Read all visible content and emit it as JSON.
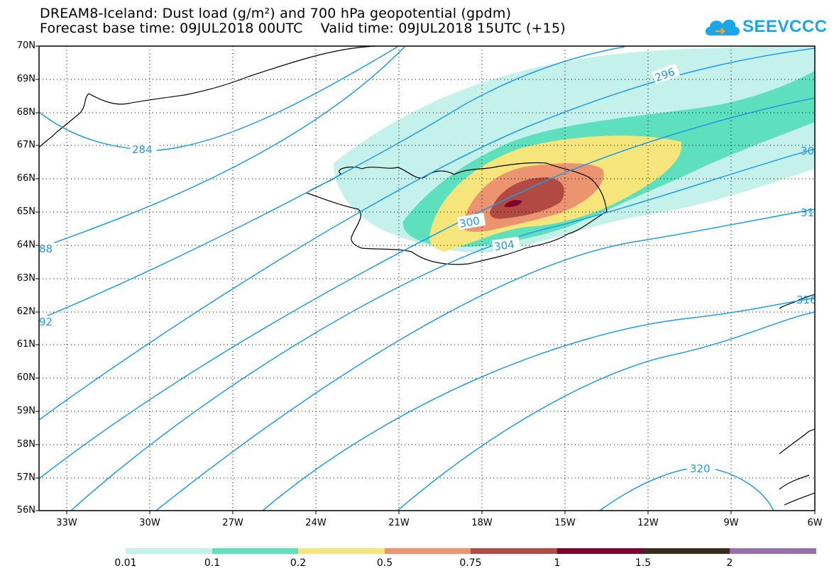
{
  "title": {
    "line1": "DREAM8-Iceland: Dust load (g/m²) and 700 hPa geopotential (gpdm)",
    "line2": "Forecast base time: 09JUL2018 00UTC    Valid time: 09JUL2018 15UTC (+15)"
  },
  "logo": {
    "text": "SEEVCCC",
    "icon": "cloud-logo-icon",
    "color": "#1aa6e8"
  },
  "map": {
    "lat_labels": [
      "70N",
      "69N",
      "68N",
      "67N",
      "66N",
      "65N",
      "64N",
      "63N",
      "62N",
      "61N",
      "60N",
      "59N",
      "58N",
      "57N",
      "56N"
    ],
    "lon_labels": [
      "33W",
      "30W",
      "27W",
      "24W",
      "21W",
      "18W",
      "15W",
      "12W",
      "9W",
      "6W"
    ],
    "contour_labels": [
      "284",
      "88",
      "92",
      "296",
      "300",
      "304",
      "30",
      "31",
      "316",
      "320"
    ],
    "contour_color": "#1e9be8",
    "grid": "dotted"
  },
  "colorbar": {
    "colors": [
      "#c4f2ea",
      "#5ee0bc",
      "#f6e57a",
      "#ec9470",
      "#b04a42",
      "#800030",
      "#3a2a1e",
      "#9a6ea8"
    ],
    "labels": [
      "0.01",
      "0.1",
      "0.2",
      "0.5",
      "0.75",
      "1",
      "1.5",
      "2"
    ]
  }
}
